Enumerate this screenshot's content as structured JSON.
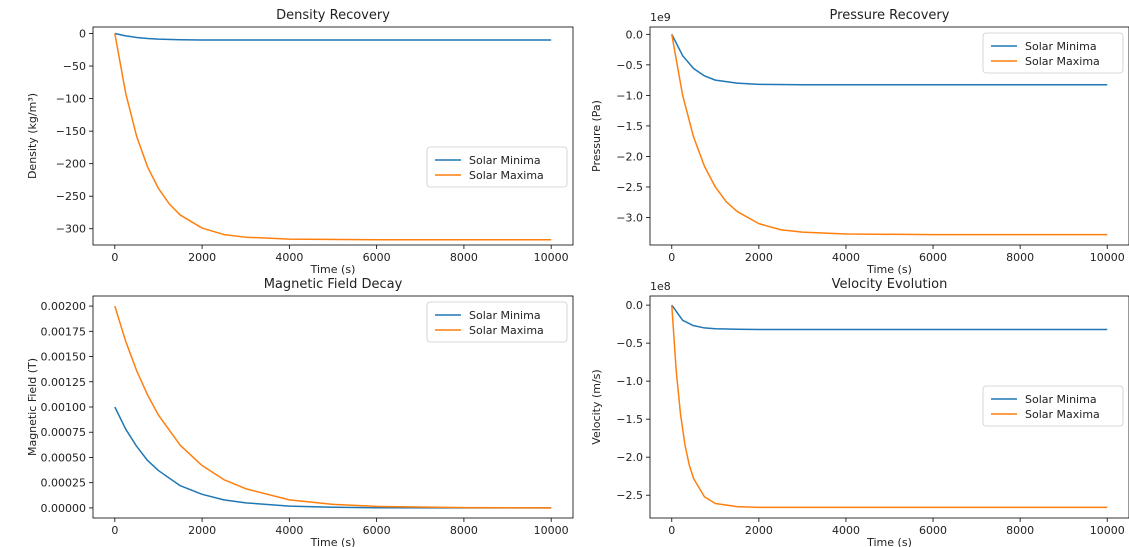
{
  "figure": {
    "series_names": [
      "Solar Minima",
      "Solar Maxima"
    ],
    "colors": {
      "Solar Minima": "#1f77b4",
      "Solar Maxima": "#ff7f0e"
    }
  },
  "chart_data": [
    {
      "type": "line",
      "title": "Density Recovery",
      "xlabel": "Time (s)",
      "ylabel": "Density (kg/m³)",
      "xlim": [
        -500,
        10500
      ],
      "ylim": [
        -325,
        10
      ],
      "xticks": [
        0,
        2000,
        4000,
        6000,
        8000,
        10000
      ],
      "xtick_labels": [
        "0",
        "2000",
        "4000",
        "6000",
        "8000",
        "10000"
      ],
      "yticks": [
        0,
        -50,
        -100,
        -150,
        -200,
        -250,
        -300
      ],
      "ytick_labels": [
        "0",
        "−50",
        "−100",
        "−150",
        "−200",
        "−250",
        "−300"
      ],
      "offset_text": "",
      "legend": "center-right",
      "grid": false,
      "series": [
        {
          "name": "Solar Minima",
          "x": [
            0,
            250,
            500,
            750,
            1000,
            1500,
            2000,
            3000,
            4000,
            6000,
            8000,
            10000
          ],
          "y": [
            0,
            -3.6,
            -6.1,
            -7.6,
            -8.6,
            -9.6,
            -9.9,
            -10,
            -10,
            -10,
            -10,
            -10
          ]
        },
        {
          "name": "Solar Maxima",
          "x": [
            0,
            250,
            500,
            750,
            1000,
            1250,
            1500,
            2000,
            2500,
            3000,
            4000,
            6000,
            8000,
            10000
          ],
          "y": [
            0,
            -92,
            -158,
            -205,
            -238,
            -262,
            -279,
            -299,
            -309,
            -313,
            -316,
            -317,
            -317,
            -317
          ]
        }
      ]
    },
    {
      "type": "line",
      "title": "Pressure Recovery",
      "xlabel": "Time (s)",
      "ylabel": "Pressure (Pa)",
      "xlim": [
        -500,
        10500
      ],
      "ylim": [
        -3.45,
        0.12
      ],
      "xticks": [
        0,
        2000,
        4000,
        6000,
        8000,
        10000
      ],
      "xtick_labels": [
        "0",
        "2000",
        "4000",
        "6000",
        "8000",
        "10000"
      ],
      "yticks": [
        0,
        -0.5,
        -1.0,
        -1.5,
        -2.0,
        -2.5,
        -3.0
      ],
      "ytick_labels": [
        "0.0",
        "−0.5",
        "−1.0",
        "−1.5",
        "−2.0",
        "−2.5",
        "−3.0"
      ],
      "offset_text": "1e9",
      "legend": "top-right",
      "grid": false,
      "series": [
        {
          "name": "Solar Minima",
          "x": [
            0,
            250,
            500,
            750,
            1000,
            1500,
            2000,
            3000,
            4000,
            6000,
            8000,
            10000
          ],
          "y": [
            0,
            -0.35,
            -0.56,
            -0.68,
            -0.75,
            -0.8,
            -0.82,
            -0.825,
            -0.825,
            -0.825,
            -0.825,
            -0.825
          ]
        },
        {
          "name": "Solar Maxima",
          "x": [
            0,
            250,
            500,
            750,
            1000,
            1250,
            1500,
            2000,
            2500,
            3000,
            4000,
            6000,
            8000,
            10000
          ],
          "y": [
            0,
            -1.0,
            -1.68,
            -2.16,
            -2.5,
            -2.74,
            -2.9,
            -3.1,
            -3.2,
            -3.24,
            -3.27,
            -3.28,
            -3.28,
            -3.28
          ]
        }
      ]
    },
    {
      "type": "line",
      "title": "Magnetic Field Decay",
      "xlabel": "Time (s)",
      "ylabel": "Magnetic Field (T)",
      "xlim": [
        -500,
        10500
      ],
      "ylim": [
        -0.0001,
        0.0021
      ],
      "xticks": [
        0,
        2000,
        4000,
        6000,
        8000,
        10000
      ],
      "xtick_labels": [
        "0",
        "2000",
        "4000",
        "6000",
        "8000",
        "10000"
      ],
      "yticks": [
        0,
        0.00025,
        0.0005,
        0.00075,
        0.001,
        0.00125,
        0.0015,
        0.00175,
        0.002
      ],
      "ytick_labels": [
        "0.00000",
        "0.00025",
        "0.00050",
        "0.00075",
        "0.00100",
        "0.00125",
        "0.00150",
        "0.00175",
        "0.00200"
      ],
      "offset_text": "",
      "legend": "top-right",
      "grid": false,
      "series": [
        {
          "name": "Solar Minima",
          "x": [
            0,
            250,
            500,
            750,
            1000,
            1500,
            2000,
            2500,
            3000,
            4000,
            5000,
            6000,
            8000,
            10000
          ],
          "y": [
            0.001,
            0.00078,
            0.00061,
            0.00047,
            0.00037,
            0.00022,
            0.000135,
            8e-05,
            5e-05,
            1.8e-05,
            7e-06,
            2e-06,
            0,
            0
          ]
        },
        {
          "name": "Solar Maxima",
          "x": [
            0,
            250,
            500,
            750,
            1000,
            1500,
            2000,
            2500,
            3000,
            4000,
            5000,
            6000,
            8000,
            10000
          ],
          "y": [
            0.002,
            0.00165,
            0.00136,
            0.00112,
            0.00092,
            0.00062,
            0.00042,
            0.00028,
            0.00019,
            8e-05,
            3.5e-05,
            1.5e-05,
            3e-06,
            0
          ]
        }
      ]
    },
    {
      "type": "line",
      "title": "Velocity Evolution",
      "xlabel": "Time (s)",
      "ylabel": "Velocity (m/s)",
      "xlim": [
        -500,
        10500
      ],
      "ylim": [
        -2.8,
        0.12
      ],
      "xticks": [
        0,
        2000,
        4000,
        6000,
        8000,
        10000
      ],
      "xtick_labels": [
        "0",
        "2000",
        "4000",
        "6000",
        "8000",
        "10000"
      ],
      "yticks": [
        0,
        -0.5,
        -1.0,
        -1.5,
        -2.0,
        -2.5
      ],
      "ytick_labels": [
        "0.0",
        "−0.5",
        "−1.0",
        "−1.5",
        "−2.0",
        "−2.5"
      ],
      "offset_text": "1e8",
      "legend": "center-right",
      "grid": false,
      "series": [
        {
          "name": "Solar Minima",
          "x": [
            0,
            250,
            500,
            750,
            1000,
            1500,
            2000,
            3000,
            4000,
            6000,
            8000,
            10000
          ],
          "y": [
            0,
            -0.2,
            -0.27,
            -0.3,
            -0.31,
            -0.318,
            -0.32,
            -0.32,
            -0.32,
            -0.32,
            -0.32,
            -0.32
          ]
        },
        {
          "name": "Solar Maxima",
          "x": [
            0,
            100,
            200,
            300,
            400,
            500,
            750,
            1000,
            1500,
            2000,
            3000,
            4000,
            6000,
            8000,
            10000
          ],
          "y": [
            0,
            -0.85,
            -1.43,
            -1.83,
            -2.1,
            -2.28,
            -2.52,
            -2.61,
            -2.65,
            -2.66,
            -2.66,
            -2.66,
            -2.66,
            -2.66,
            -2.66
          ]
        }
      ]
    }
  ]
}
